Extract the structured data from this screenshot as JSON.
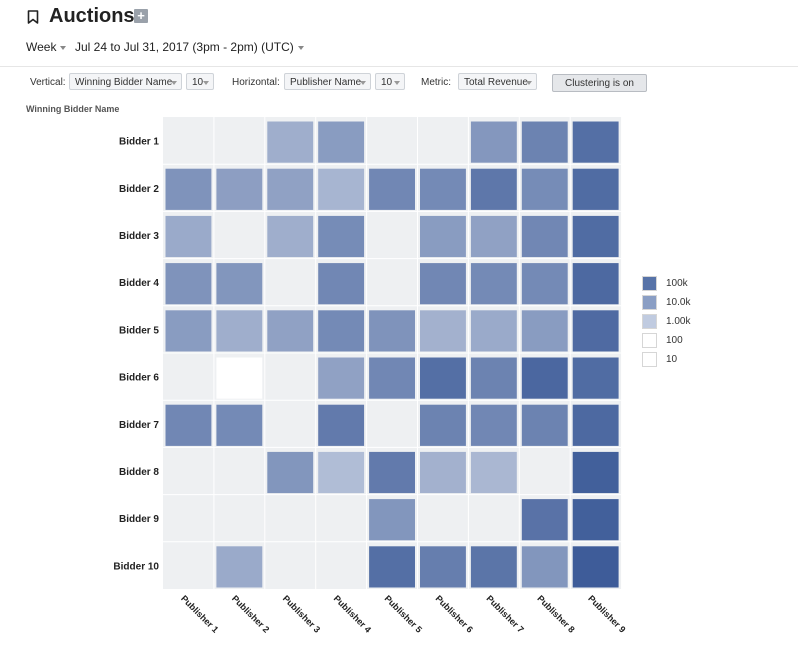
{
  "header": {
    "title": "Auctions",
    "add_label": "+",
    "period": "Week",
    "date_range": "Jul 24 to Jul 31, 2017 (3pm - 2pm) (UTC)"
  },
  "controls": {
    "vertical_label": "Vertical:",
    "vertical_value": "Winning Bidder Name",
    "vertical_count": "10",
    "horizontal_label": "Horizontal:",
    "horizontal_value": "Publisher Name",
    "horizontal_count": "10",
    "metric_label": "Metric:",
    "metric_value": "Total Revenue",
    "clustering_label": "Clustering is on"
  },
  "legend": [
    {
      "label": "100k",
      "color": "#5773a8"
    },
    {
      "label": "10.0k",
      "color": "#8a9ec4"
    },
    {
      "label": "1.00k",
      "color": "#c0cbe0"
    },
    {
      "label": "100",
      "color": "#ffffff"
    },
    {
      "label": "10",
      "color": "#ffffff"
    }
  ],
  "chart_data": {
    "type": "heatmap",
    "ylabel": "Winning Bidder Name",
    "y_categories": [
      "Bidder 1",
      "Bidder 2",
      "Bidder 3",
      "Bidder 4",
      "Bidder 5",
      "Bidder 6",
      "Bidder 7",
      "Bidder 8",
      "Bidder 9",
      "Bidder 10"
    ],
    "x_categories": [
      "Publisher 1",
      "Publisher 2",
      "Publisher 3",
      "Publisher 4",
      "Publisher 5",
      "Publisher 6",
      "Publisher 7",
      "Publisher 8",
      "Publisher 9"
    ],
    "values": [
      [
        null,
        null,
        1200,
        3500,
        null,
        null,
        4500,
        15000,
        50000
      ],
      [
        6000,
        3000,
        2500,
        800,
        12000,
        10000,
        30000,
        9000,
        60000
      ],
      [
        1500,
        null,
        1200,
        9000,
        null,
        3500,
        2500,
        12000,
        60000
      ],
      [
        6000,
        5000,
        null,
        12000,
        null,
        12000,
        10000,
        10000,
        70000
      ],
      [
        3500,
        1200,
        2500,
        10000,
        6000,
        1000,
        1500,
        3500,
        65000
      ],
      [
        null,
        10,
        null,
        2500,
        12000,
        50000,
        15000,
        80000,
        60000
      ],
      [
        12000,
        10000,
        null,
        25000,
        null,
        15000,
        12000,
        15000,
        70000
      ],
      [
        null,
        null,
        5000,
        500,
        25000,
        1000,
        700,
        null,
        120000
      ],
      [
        null,
        null,
        null,
        null,
        5000,
        null,
        null,
        40000,
        120000
      ],
      [
        null,
        1500,
        null,
        null,
        50000,
        20000,
        35000,
        5000,
        150000
      ]
    ],
    "color_scale": {
      "type": "log",
      "domain": [
        10,
        150000
      ],
      "range": [
        "#ffffff",
        "#3e5c99"
      ]
    },
    "grid": true,
    "legend_position": "right"
  }
}
